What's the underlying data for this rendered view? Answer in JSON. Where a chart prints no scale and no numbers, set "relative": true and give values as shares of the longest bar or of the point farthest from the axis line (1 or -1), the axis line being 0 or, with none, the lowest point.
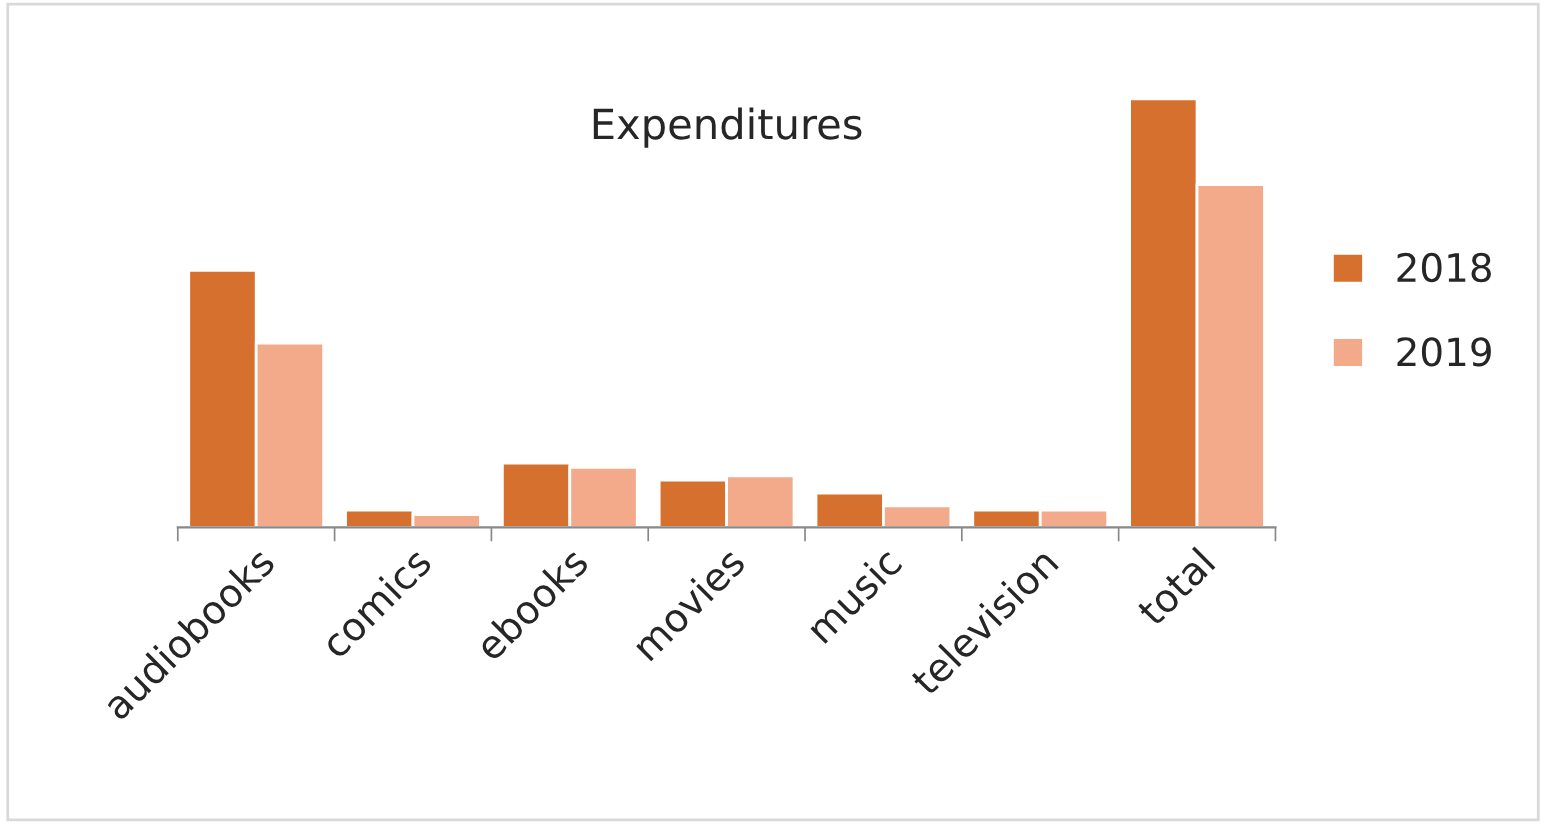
{
  "chart_data": {
    "type": "bar",
    "title": "Expenditures",
    "relative": true,
    "categories": [
      "audiobooks",
      "comics",
      "ebooks",
      "movies",
      "music",
      "television",
      "total"
    ],
    "series": [
      {
        "name": "2018",
        "color": "#d5702e",
        "values": [
          0.6,
          0.04,
          0.15,
          0.11,
          0.08,
          0.04,
          1
        ]
      },
      {
        "name": "2019",
        "color": "#f3aa8a",
        "values": [
          0.43,
          0.03,
          0.14,
          0.12,
          0.05,
          0.04,
          0.8
        ]
      }
    ],
    "legend": "right",
    "grid": false
  }
}
